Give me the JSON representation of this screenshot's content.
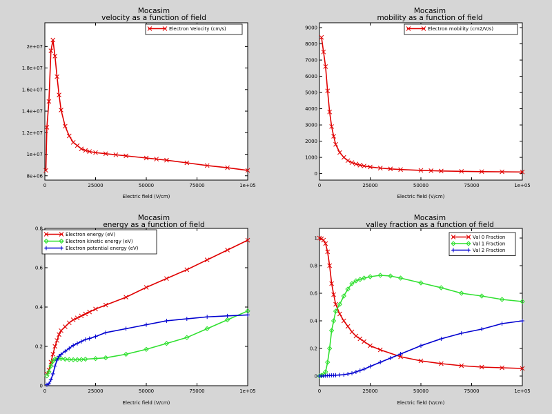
{
  "chart_data": [
    {
      "type": "line",
      "title": "Mocasim",
      "subtitle": "velocity as a function of field",
      "xlabel": "Electric field (V/cm)",
      "ylabel": "",
      "xlim": [
        0,
        100000
      ],
      "ylim": [
        7600000,
        22200000
      ],
      "xticks": [
        0,
        25000,
        50000,
        75000,
        100000
      ],
      "xtick_labels": [
        "0",
        "25000",
        "50000",
        "75000",
        "1e+05"
      ],
      "yticks": [
        8000000,
        10000000,
        12000000,
        14000000,
        16000000,
        18000000,
        20000000
      ],
      "ytick_labels": [
        "8e+06",
        "1e+07",
        "1.2e+07",
        "1.4e+07",
        "1.6e+07",
        "1.8e+07",
        "2e+07"
      ],
      "legend_position": "top-right",
      "series": [
        {
          "name": "Electron Velocity (cm/s)",
          "color": "#e00000",
          "marker": "x",
          "x": [
            500,
            1000,
            2000,
            3000,
            4000,
            5000,
            6000,
            7000,
            8000,
            10000,
            12000,
            14000,
            16000,
            18000,
            20000,
            22000,
            25000,
            30000,
            35000,
            40000,
            50000,
            55000,
            60000,
            70000,
            80000,
            90000,
            100000
          ],
          "y": [
            8500000,
            12500000,
            14900000,
            19600000,
            20600000,
            19100000,
            17200000,
            15500000,
            14100000,
            12600000,
            11700000,
            11100000,
            10800000,
            10500000,
            10350000,
            10250000,
            10150000,
            10050000,
            9950000,
            9850000,
            9650000,
            9550000,
            9450000,
            9200000,
            8950000,
            8750000,
            8500000
          ]
        }
      ]
    },
    {
      "type": "line",
      "title": "Mocasim",
      "subtitle": "mobility as a function of field",
      "xlabel": "Electric field (V/cm)",
      "ylabel": "",
      "xlim": [
        0,
        100000
      ],
      "ylim": [
        -400,
        9300
      ],
      "xticks": [
        0,
        25000,
        50000,
        75000,
        100000
      ],
      "xtick_labels": [
        "0",
        "25000",
        "50000",
        "75000",
        "1e+05"
      ],
      "yticks": [
        0,
        1000,
        2000,
        3000,
        4000,
        5000,
        6000,
        7000,
        8000,
        9000
      ],
      "ytick_labels": [
        "0",
        "1000",
        "2000",
        "3000",
        "4000",
        "5000",
        "6000",
        "7000",
        "8000",
        "9000"
      ],
      "legend_position": "top-right",
      "series": [
        {
          "name": "Electron mobility (cm2/V/s)",
          "color": "#e00000",
          "marker": "x",
          "x": [
            1000,
            2000,
            3000,
            4000,
            5000,
            6000,
            7000,
            8000,
            10000,
            12000,
            14000,
            16000,
            18000,
            20000,
            22000,
            25000,
            30000,
            35000,
            40000,
            50000,
            55000,
            60000,
            70000,
            80000,
            90000,
            100000
          ],
          "y": [
            8400,
            7500,
            6600,
            5100,
            3800,
            2900,
            2300,
            1800,
            1300,
            1000,
            800,
            680,
            590,
            520,
            470,
            410,
            340,
            290,
            250,
            200,
            180,
            160,
            140,
            120,
            110,
            100
          ]
        }
      ]
    },
    {
      "type": "line",
      "title": "Mocasim",
      "subtitle": "energy as a function of field",
      "xlabel": "Electric field (V/cm)",
      "ylabel": "",
      "xlim": [
        0,
        100000
      ],
      "ylim": [
        0,
        0.8
      ],
      "xticks": [
        0,
        25000,
        50000,
        75000,
        100000
      ],
      "xtick_labels": [
        "0",
        "25000",
        "50000",
        "75000",
        "1e+05"
      ],
      "yticks": [
        0,
        0.2,
        0.4,
        0.6,
        0.8
      ],
      "ytick_labels": [
        "0",
        "0.2",
        "0.4",
        "0.6",
        "0.8"
      ],
      "legend_position": "top-left",
      "series": [
        {
          "name": "Electron energy (eV)",
          "color": "#e00000",
          "marker": "x",
          "x": [
            1000,
            2000,
            3000,
            4000,
            5000,
            6000,
            7000,
            8000,
            10000,
            12000,
            14000,
            16000,
            18000,
            20000,
            22000,
            25000,
            30000,
            40000,
            50000,
            60000,
            70000,
            80000,
            90000,
            100000
          ],
          "y": [
            0.06,
            0.08,
            0.12,
            0.16,
            0.2,
            0.23,
            0.26,
            0.28,
            0.3,
            0.32,
            0.335,
            0.345,
            0.355,
            0.365,
            0.375,
            0.39,
            0.41,
            0.45,
            0.5,
            0.545,
            0.59,
            0.64,
            0.69,
            0.74
          ]
        },
        {
          "name": "Electron kinetic energy (eV)",
          "color": "#30e030",
          "marker": "diamond",
          "x": [
            1000,
            2000,
            3000,
            4000,
            5000,
            6000,
            8000,
            10000,
            12000,
            14000,
            16000,
            18000,
            20000,
            25000,
            30000,
            40000,
            50000,
            60000,
            70000,
            80000,
            90000,
            100000
          ],
          "y": [
            0.05,
            0.07,
            0.1,
            0.125,
            0.135,
            0.138,
            0.138,
            0.135,
            0.133,
            0.132,
            0.132,
            0.133,
            0.135,
            0.138,
            0.142,
            0.16,
            0.185,
            0.215,
            0.245,
            0.29,
            0.335,
            0.38
          ]
        },
        {
          "name": "Electron potential energy (eV)",
          "color": "#0000d0",
          "marker": "plus",
          "x": [
            1000,
            2000,
            3000,
            4000,
            5000,
            6000,
            7000,
            8000,
            10000,
            12000,
            14000,
            16000,
            18000,
            20000,
            22000,
            25000,
            30000,
            40000,
            50000,
            60000,
            70000,
            80000,
            90000,
            100000
          ],
          "y": [
            0.005,
            0.01,
            0.03,
            0.06,
            0.1,
            0.13,
            0.15,
            0.16,
            0.175,
            0.19,
            0.205,
            0.215,
            0.225,
            0.235,
            0.24,
            0.25,
            0.27,
            0.29,
            0.31,
            0.33,
            0.34,
            0.35,
            0.355,
            0.36
          ]
        }
      ]
    },
    {
      "type": "line",
      "title": "Mocasim",
      "subtitle": "valley fraction as a function of field",
      "xlabel": "Electric field (V/cm)",
      "ylabel": "",
      "xlim": [
        0,
        100000
      ],
      "ylim": [
        -0.07,
        1.07
      ],
      "xticks": [
        0,
        25000,
        50000,
        75000,
        100000
      ],
      "xtick_labels": [
        "0",
        "25000",
        "50000",
        "75000",
        "1e+05"
      ],
      "yticks": [
        0,
        0.2,
        0.4,
        0.6,
        0.8,
        1
      ],
      "ytick_labels": [
        "0",
        "0.2",
        "0.4",
        "0.6",
        "0.8",
        "1"
      ],
      "legend_position": "top-right",
      "series": [
        {
          "name": "Val 0 Fraction",
          "color": "#e00000",
          "marker": "x",
          "x": [
            0,
            1000,
            2000,
            3000,
            4000,
            5000,
            6000,
            7000,
            8000,
            10000,
            12000,
            14000,
            16000,
            18000,
            20000,
            22000,
            25000,
            30000,
            40000,
            50000,
            60000,
            70000,
            80000,
            90000,
            100000
          ],
          "y": [
            1.0,
            0.995,
            0.985,
            0.96,
            0.9,
            0.8,
            0.67,
            0.59,
            0.52,
            0.45,
            0.4,
            0.36,
            0.32,
            0.29,
            0.27,
            0.25,
            0.22,
            0.19,
            0.14,
            0.11,
            0.09,
            0.075,
            0.065,
            0.06,
            0.055
          ]
        },
        {
          "name": "Val 1 Fraction",
          "color": "#30e030",
          "marker": "diamond",
          "x": [
            0,
            1000,
            2000,
            3000,
            4000,
            5000,
            6000,
            7000,
            8000,
            10000,
            12000,
            14000,
            16000,
            18000,
            20000,
            22000,
            25000,
            30000,
            35000,
            40000,
            50000,
            60000,
            70000,
            80000,
            90000,
            100000
          ],
          "y": [
            0.0,
            0.005,
            0.01,
            0.03,
            0.1,
            0.2,
            0.33,
            0.4,
            0.47,
            0.52,
            0.58,
            0.63,
            0.67,
            0.69,
            0.7,
            0.71,
            0.72,
            0.73,
            0.725,
            0.71,
            0.675,
            0.64,
            0.6,
            0.58,
            0.555,
            0.54
          ]
        },
        {
          "name": "Val 2 Fraction",
          "color": "#0000d0",
          "marker": "plus",
          "x": [
            0,
            1000,
            2000,
            3000,
            4000,
            5000,
            6000,
            7000,
            8000,
            10000,
            12000,
            14000,
            16000,
            18000,
            20000,
            22000,
            25000,
            30000,
            35000,
            40000,
            50000,
            60000,
            70000,
            80000,
            90000,
            100000
          ],
          "y": [
            0.0,
            0.0,
            0.0,
            0.002,
            0.003,
            0.004,
            0.005,
            0.005,
            0.006,
            0.008,
            0.01,
            0.015,
            0.02,
            0.03,
            0.04,
            0.05,
            0.07,
            0.1,
            0.13,
            0.16,
            0.22,
            0.27,
            0.31,
            0.34,
            0.38,
            0.4
          ]
        }
      ]
    }
  ]
}
